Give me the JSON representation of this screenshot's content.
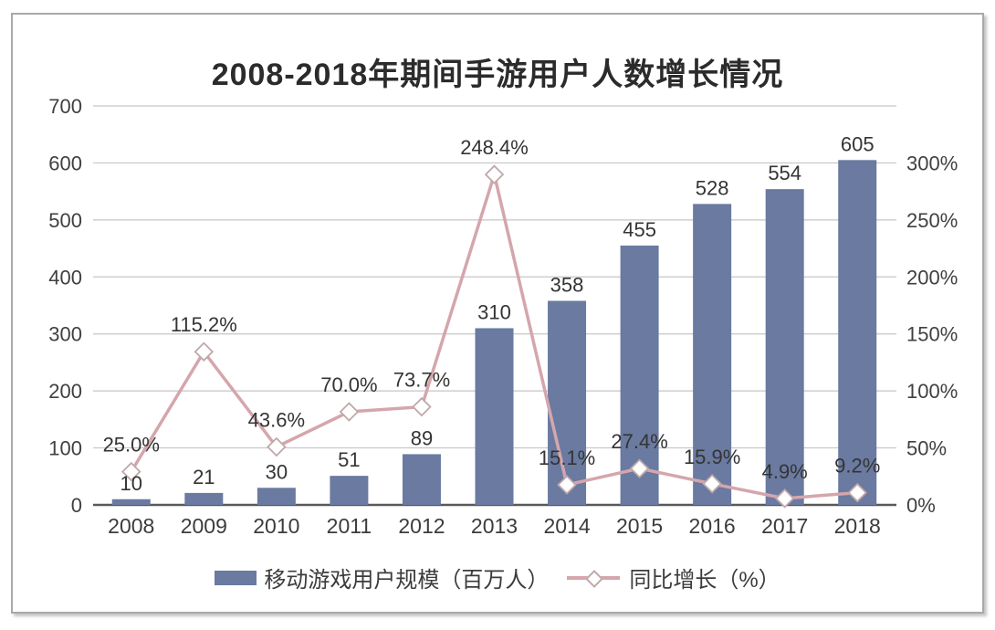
{
  "title": "2008-2018年期间手游用户人数增长情况",
  "chart_data": {
    "type": "bar+line",
    "categories": [
      "2008",
      "2009",
      "2010",
      "2011",
      "2012",
      "2013",
      "2014",
      "2015",
      "2016",
      "2017",
      "2018"
    ],
    "series": [
      {
        "name": "移动游戏用户规模（百万人）",
        "type": "bar",
        "axis": "left",
        "color": "#6a7aa0",
        "values": [
          10,
          21,
          30,
          51,
          89,
          310,
          358,
          455,
          528,
          554,
          605
        ],
        "labels": [
          "10",
          "21",
          "30",
          "51",
          "89",
          "310",
          "358",
          "455",
          "528",
          "554",
          "605"
        ]
      },
      {
        "name": "同比增长（%）",
        "type": "line",
        "axis": "right",
        "color": "#d4a6ac",
        "marker": "diamond",
        "marker_fill": "#ffffff",
        "marker_stroke": "#c0a8aa",
        "values": [
          25.0,
          115.2,
          43.6,
          70.0,
          73.7,
          248.4,
          15.1,
          27.4,
          15.9,
          4.9,
          9.2
        ],
        "labels": [
          "25.0%",
          "115.2%",
          "43.6%",
          "70.0%",
          "73.7%",
          "248.4%",
          "15.1%",
          "27.4%",
          "15.9%",
          "4.9%",
          "9.2%"
        ]
      }
    ],
    "left_axis": {
      "min": 0,
      "max": 700,
      "ticks": [
        "0",
        "100",
        "200",
        "300",
        "400",
        "500",
        "600",
        "700"
      ]
    },
    "right_axis": {
      "min": 0,
      "max": 300,
      "ticks": [
        "0%",
        "50%",
        "100%",
        "150%",
        "200%",
        "250%",
        "300%"
      ]
    },
    "grid": true,
    "grid_color": "#c6c6c6",
    "axis_line_color": "#595959",
    "legend_position": "bottom"
  }
}
